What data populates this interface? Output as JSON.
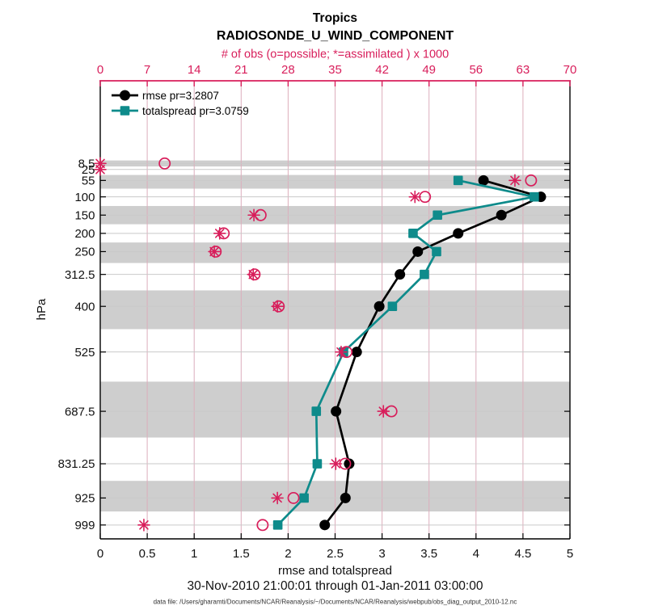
{
  "title": {
    "line1": "Tropics",
    "line2": "RADIOSONDE_U_WIND_COMPONENT"
  },
  "footer": {
    "date_range": "30-Nov-2010 21:00:01 through 01-Jan-2011 03:00:00",
    "data_file": "data file: /Users/gharamti/Documents/NCAR/Reanalysis/~/Documents/NCAR/Reanalysis/webpub/obs_diag_output_2010-12.nc"
  },
  "chart_data": {
    "type": "line",
    "title": "Tropics",
    "subtitle": "RADIOSONDE_U_WIND_COMPONENT",
    "top_axis_label": "# of obs (o=possible; *=assimilated ) x 1000",
    "xlabel": "rmse and totalspread",
    "ylabel": "hPa",
    "x_range_bottom": [
      0,
      5
    ],
    "x_ticks_bottom": [
      0,
      0.5,
      1,
      1.5,
      2,
      2.5,
      3,
      3.5,
      4,
      4.5,
      5
    ],
    "x_tick_labels_bottom": [
      "0",
      "0.5",
      "1",
      "1.5",
      "2",
      "2.5",
      "3",
      "3.5",
      "4",
      "4.5",
      "5"
    ],
    "x_range_top": [
      0,
      70
    ],
    "x_ticks_top": [
      0,
      7,
      14,
      21,
      28,
      35,
      42,
      49,
      56,
      63,
      70
    ],
    "x_tick_labels_top": [
      "0",
      "7",
      "14",
      "21",
      "28",
      "35",
      "42",
      "49",
      "56",
      "63",
      "70"
    ],
    "y_levels_hPa": [
      8.5,
      25,
      55,
      100,
      150,
      200,
      250,
      312.5,
      400,
      525,
      687.5,
      831.25,
      925,
      999
    ],
    "y_tick_labels": [
      "8.5",
      "25",
      "55",
      "100",
      "150",
      "200",
      "250",
      "312.5",
      "400",
      "525",
      "687.5",
      "831.25",
      "925",
      "999"
    ],
    "y_limits_hPa": [
      -218,
      1037
    ],
    "y_direction": "pressure increases downward",
    "grid": "on",
    "legend_position": "top-left inside",
    "series": [
      {
        "name": "rmse",
        "legend": "rmse pr=3.2807",
        "color": "#000000",
        "marker": "circle",
        "values": [
          null,
          null,
          4.08,
          4.69,
          4.27,
          3.81,
          3.38,
          3.19,
          2.97,
          2.73,
          2.51,
          2.65,
          2.61,
          2.39
        ]
      },
      {
        "name": "totalspread",
        "legend": "totalspread pr=3.0759",
        "color": "#0e8b8b",
        "marker": "square",
        "values": [
          null,
          null,
          3.81,
          4.62,
          3.59,
          3.33,
          3.58,
          3.45,
          3.11,
          2.59,
          2.3,
          2.31,
          2.17,
          1.89
        ]
      }
    ],
    "obs_counts_x1000": {
      "possible_o": [
        9.6,
        null,
        64.2,
        48.4,
        23.9,
        18.4,
        17.2,
        23.0,
        26.6,
        36.7,
        43.4,
        36.5,
        28.8,
        24.2
      ],
      "assimilated_ast": [
        0,
        0,
        61.8,
        46.9,
        22.9,
        17.8,
        17.0,
        22.8,
        26.4,
        35.9,
        42.2,
        35.1,
        26.4,
        6.5
      ]
    },
    "shaded_bands_hPa": [
      [
        0.25,
        16.75
      ],
      [
        40,
        77.5
      ],
      [
        125,
        175
      ],
      [
        225,
        281.25
      ],
      [
        356.25,
        462.5
      ],
      [
        606.25,
        759.375
      ],
      [
        878.125,
        962
      ]
    ],
    "colors": {
      "obs_pink": "#d81e5b",
      "rmse_black": "#000000",
      "totalspread_teal": "#0e8b8b",
      "band_gray": "#cecece",
      "h_grid": "#c9c9c9",
      "v_grid": "#dcaebc"
    }
  }
}
